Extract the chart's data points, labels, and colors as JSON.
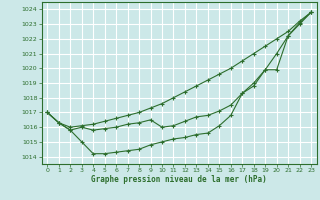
{
  "background_color": "#cce8e8",
  "grid_color": "#ffffff",
  "line_color": "#2d6e2d",
  "xlabel": "Graphe pression niveau de la mer (hPa)",
  "ylim": [
    1013.5,
    1024.5
  ],
  "xlim": [
    -0.5,
    23.5
  ],
  "yticks": [
    1014,
    1015,
    1016,
    1017,
    1018,
    1019,
    1020,
    1021,
    1022,
    1023,
    1024
  ],
  "xticks": [
    0,
    1,
    2,
    3,
    4,
    5,
    6,
    7,
    8,
    9,
    10,
    11,
    12,
    13,
    14,
    15,
    16,
    17,
    18,
    19,
    20,
    21,
    22,
    23
  ],
  "line1_x": [
    0,
    1,
    2,
    3,
    4,
    5,
    6,
    7,
    8,
    9,
    10,
    11,
    12,
    13,
    14,
    15,
    16,
    17,
    18,
    19,
    20,
    21,
    22,
    23
  ],
  "line1_y": [
    1017.0,
    1016.3,
    1016.0,
    1016.1,
    1016.2,
    1016.4,
    1016.6,
    1016.8,
    1017.0,
    1017.3,
    1017.6,
    1018.0,
    1018.4,
    1018.8,
    1019.2,
    1019.6,
    1020.0,
    1020.5,
    1021.0,
    1021.5,
    1022.0,
    1022.5,
    1023.2,
    1023.8
  ],
  "line2_x": [
    0,
    1,
    2,
    3,
    4,
    5,
    6,
    7,
    8,
    9,
    10,
    11,
    12,
    13,
    14,
    15,
    16,
    17,
    18,
    19,
    20,
    21,
    22,
    23
  ],
  "line2_y": [
    1017.0,
    1016.3,
    1015.8,
    1016.0,
    1015.8,
    1015.9,
    1016.0,
    1016.2,
    1016.3,
    1016.5,
    1016.0,
    1016.1,
    1016.4,
    1016.7,
    1016.8,
    1017.1,
    1017.5,
    1018.3,
    1019.0,
    1019.9,
    1021.0,
    1022.2,
    1023.0,
    1023.8
  ],
  "line3_x": [
    0,
    1,
    2,
    3,
    4,
    5,
    6,
    7,
    8,
    9,
    10,
    11,
    12,
    13,
    14,
    15,
    16,
    17,
    18,
    19,
    20,
    21,
    22,
    23
  ],
  "line3_y": [
    1017.0,
    1016.3,
    1015.8,
    1015.0,
    1014.2,
    1014.2,
    1014.3,
    1014.4,
    1014.5,
    1014.8,
    1015.0,
    1015.2,
    1015.3,
    1015.5,
    1015.6,
    1016.1,
    1016.8,
    1018.3,
    1018.8,
    1019.9,
    1019.9,
    1022.2,
    1023.1,
    1023.8
  ]
}
